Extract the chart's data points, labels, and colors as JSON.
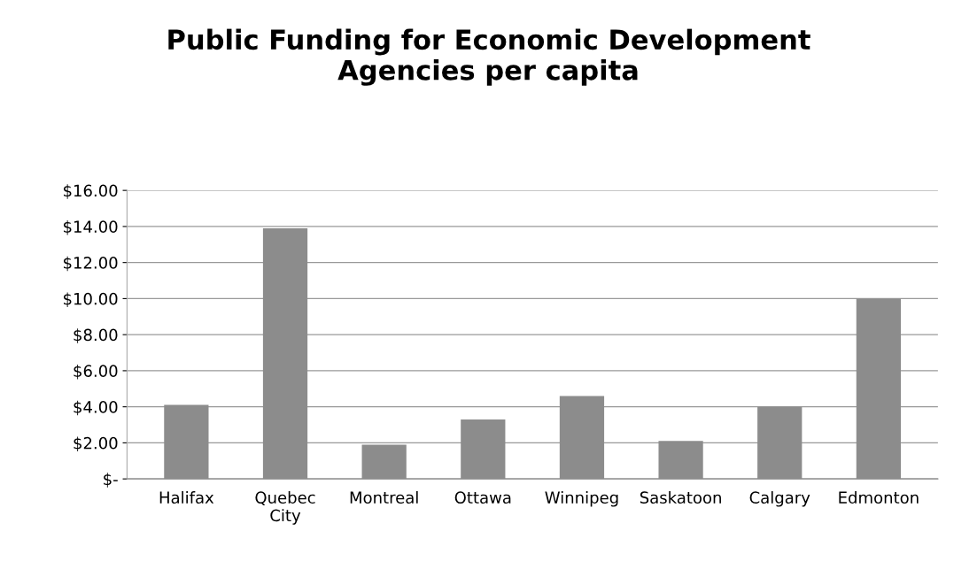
{
  "chart_data": {
    "type": "bar",
    "title": "Public Funding for Economic Development\nAgencies per capita",
    "categories": [
      "Halifax",
      "Quebec\nCity",
      "Montreal",
      "Ottawa",
      "Winnipeg",
      "Saskatoon",
      "Calgary",
      "Edmonton"
    ],
    "values": [
      4.1,
      13.9,
      1.9,
      3.3,
      4.6,
      2.1,
      4.0,
      10.0
    ],
    "color": "#8c8c8c",
    "ylim": [
      0,
      16
    ],
    "yticks": [
      {
        "value": 0,
        "label": "$-"
      },
      {
        "value": 2,
        "label": "$2.00"
      },
      {
        "value": 4,
        "label": "$4.00"
      },
      {
        "value": 6,
        "label": "$6.00"
      },
      {
        "value": 8,
        "label": "$8.00"
      },
      {
        "value": 10,
        "label": "$10.00"
      },
      {
        "value": 12,
        "label": "$12.00"
      },
      {
        "value": 14,
        "label": "$14.00"
      },
      {
        "value": 16,
        "label": "$16.00"
      }
    ],
    "grid": "y",
    "legend": false
  }
}
